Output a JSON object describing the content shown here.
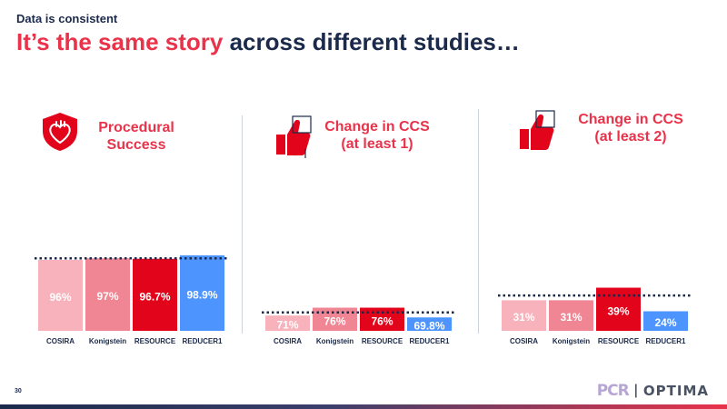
{
  "header": {
    "kicker": "Data is consistent",
    "title_highlight": "It’s the same story",
    "title_rest": " across different studies…"
  },
  "page_number": "30",
  "logos": {
    "pcr": "PCR",
    "separator": "|",
    "optima": "OPTIMA"
  },
  "colors": {
    "accent": "#e8334a",
    "navy": "#1b2a4a",
    "bar_colors": [
      "#f7b2bb",
      "#f08693",
      "#e2041b",
      "#4d94ff"
    ]
  },
  "chart_data": [
    {
      "type": "bar",
      "title": "Procedural Success",
      "title_lines": [
        "Procedural",
        "Success"
      ],
      "icon": "heart-shield-icon",
      "categories": [
        "COSIRA",
        "Konigstein",
        "RESOURCE",
        "REDUCER1"
      ],
      "values": [
        96,
        97,
        96.7,
        98.9
      ],
      "value_labels": [
        "96%",
        "97%",
        "96.7%",
        "98.9%"
      ],
      "reference_line": 97,
      "ylim": [
        0,
        100
      ],
      "grid": false
    },
    {
      "type": "bar",
      "title": "Change in CCS (at least 1)",
      "title_lines": [
        "Change in CCS",
        "(at least 1)"
      ],
      "icon": "thumbs-up-icon",
      "categories": [
        "COSIRA",
        "Konigstein",
        "RESOURCE",
        "REDUCER1"
      ],
      "values": [
        71,
        76,
        76,
        69.8
      ],
      "value_labels": [
        "71%",
        "76%",
        "76%",
        "69.8%"
      ],
      "reference_line": 73,
      "ylim": [
        0,
        100
      ],
      "grid": false
    },
    {
      "type": "bar",
      "title": "Change in CCS (at least 2)",
      "title_lines": [
        "Change in CCS",
        "(at least 2)"
      ],
      "icon": "thumbs-up-icon",
      "categories": [
        "COSIRA",
        "Konigstein",
        "RESOURCE",
        "REDUCER1"
      ],
      "values": [
        31,
        31,
        39,
        24
      ],
      "value_labels": [
        "31%",
        "31%",
        "39%",
        "24%"
      ],
      "reference_line": 34,
      "ylim": [
        0,
        100
      ],
      "grid": false
    }
  ]
}
